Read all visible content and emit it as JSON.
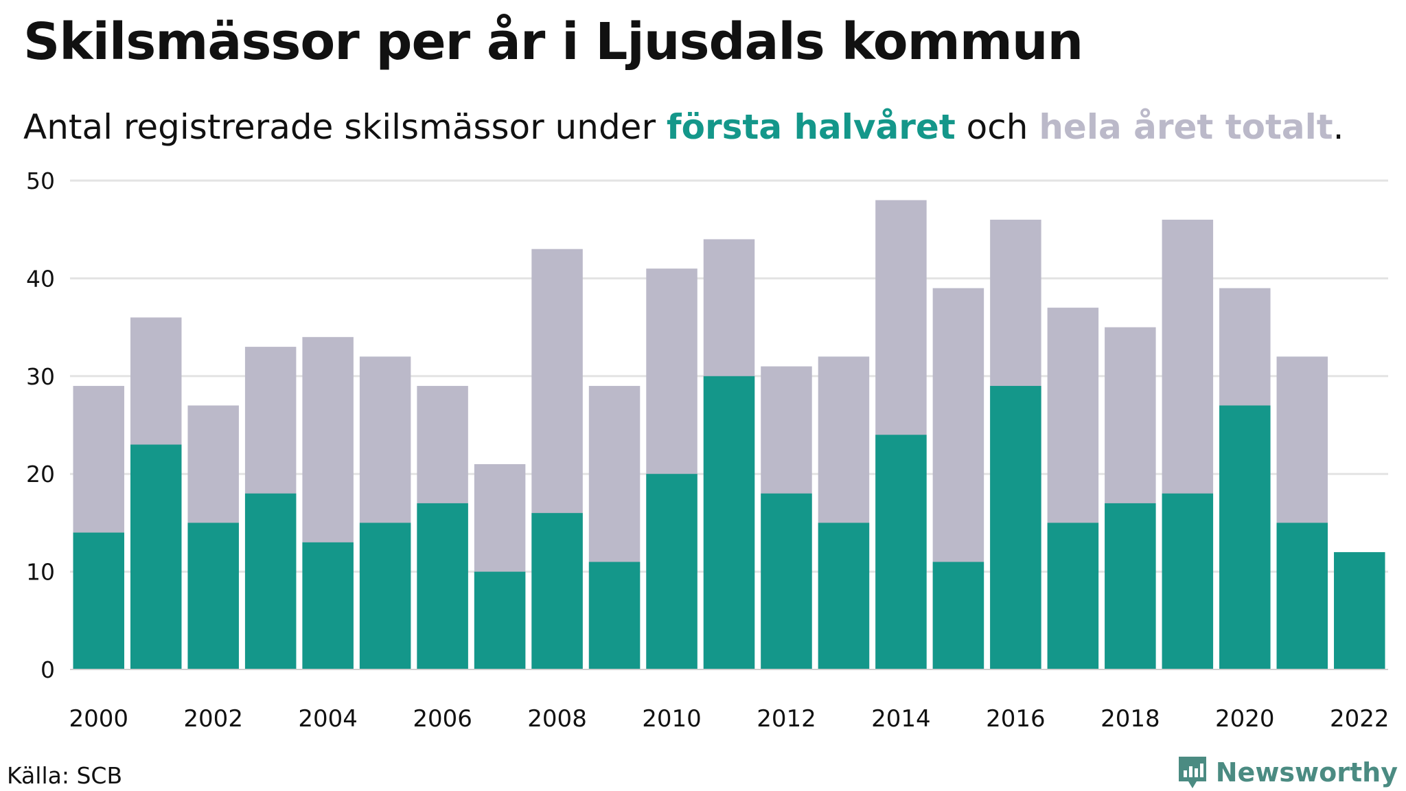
{
  "title": "Skilsmässor per år i Ljusdals kommun",
  "subtitle": {
    "part1": "Antal registrerade skilsmässor under ",
    "highlight1": "första halvåret",
    "part2": " och ",
    "highlight2": "hela året totalt",
    "part3": "."
  },
  "source": "Källa: SCB",
  "brand": {
    "name": "Newsworthy",
    "icon": "newsworthy-logo-icon"
  },
  "colors": {
    "first_half": "#14978a",
    "total": "#bbb9c9",
    "grid": "#e3e3e3",
    "text": "#111111",
    "brand": "#4b8b82"
  },
  "chart_data": {
    "type": "bar",
    "stacking": "overlay",
    "x": [
      2000,
      2001,
      2002,
      2003,
      2004,
      2005,
      2006,
      2007,
      2008,
      2009,
      2010,
      2011,
      2012,
      2013,
      2014,
      2015,
      2016,
      2017,
      2018,
      2019,
      2020,
      2021,
      2022
    ],
    "x_tick_labels": [
      "2000",
      "2002",
      "2004",
      "2006",
      "2008",
      "2010",
      "2012",
      "2014",
      "2016",
      "2018",
      "2020",
      "2022"
    ],
    "series": [
      {
        "name": "hela året totalt",
        "color": "#bbb9c9",
        "values": [
          29,
          36,
          27,
          33,
          34,
          32,
          29,
          21,
          43,
          29,
          41,
          44,
          31,
          32,
          48,
          39,
          46,
          37,
          35,
          46,
          39,
          32,
          null
        ]
      },
      {
        "name": "första halvåret",
        "color": "#14978a",
        "values": [
          14,
          23,
          15,
          18,
          13,
          15,
          17,
          10,
          16,
          11,
          20,
          30,
          18,
          15,
          24,
          11,
          29,
          15,
          17,
          18,
          27,
          15,
          12
        ]
      }
    ],
    "ylim": [
      0,
      50
    ],
    "y_ticks": [
      0,
      10,
      20,
      30,
      40,
      50
    ],
    "grid": true,
    "legend": "in subtitle"
  }
}
